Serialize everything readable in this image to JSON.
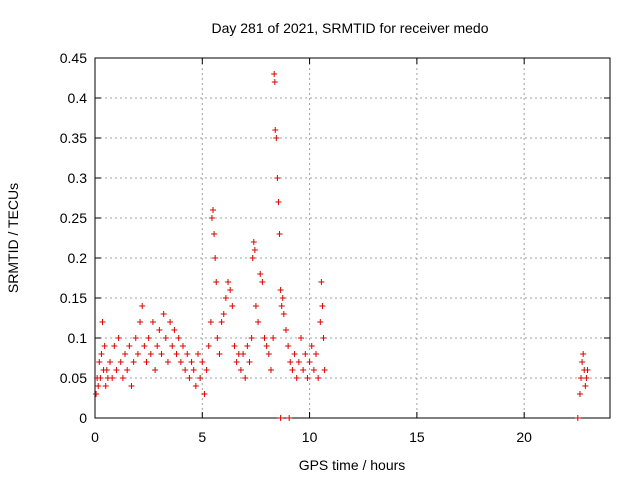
{
  "chart_data": {
    "type": "scatter",
    "title": "Day 281 of 2021, SRMTID for receiver medo",
    "xlabel": "GPS time / hours",
    "ylabel": "SRMTID / TECUs",
    "xlim": [
      0,
      24
    ],
    "ylim": [
      0,
      0.45
    ],
    "xticks": [
      0,
      5,
      10,
      15,
      20
    ],
    "xtick_labels": [
      "0",
      "5",
      "10",
      "15",
      "20"
    ],
    "yticks": [
      0,
      0.05,
      0.1,
      0.15,
      0.2,
      0.25,
      0.3,
      0.35,
      0.4,
      0.45
    ],
    "ytick_labels": [
      "0",
      "0.05",
      "0.1",
      "0.15",
      "0.2",
      "0.25",
      "0.3",
      "0.35",
      "0.4",
      "0.45"
    ],
    "grid": true,
    "marker": "+",
    "color": "#dd0000",
    "series": [
      {
        "name": "SRMTID",
        "points": [
          [
            0.05,
            0.03
          ],
          [
            0.1,
            0.05
          ],
          [
            0.15,
            0.04
          ],
          [
            0.2,
            0.07
          ],
          [
            0.25,
            0.05
          ],
          [
            0.3,
            0.08
          ],
          [
            0.35,
            0.12
          ],
          [
            0.4,
            0.06
          ],
          [
            0.45,
            0.09
          ],
          [
            0.5,
            0.04
          ],
          [
            0.55,
            0.06
          ],
          [
            0.6,
            0.05
          ],
          [
            0.7,
            0.07
          ],
          [
            0.8,
            0.05
          ],
          [
            0.9,
            0.09
          ],
          [
            1.0,
            0.06
          ],
          [
            1.1,
            0.1
          ],
          [
            1.2,
            0.07
          ],
          [
            1.3,
            0.05
          ],
          [
            1.4,
            0.08
          ],
          [
            1.5,
            0.06
          ],
          [
            1.6,
            0.09
          ],
          [
            1.7,
            0.04
          ],
          [
            1.8,
            0.07
          ],
          [
            1.9,
            0.1
          ],
          [
            2.0,
            0.08
          ],
          [
            2.1,
            0.12
          ],
          [
            2.2,
            0.14
          ],
          [
            2.3,
            0.09
          ],
          [
            2.4,
            0.07
          ],
          [
            2.5,
            0.1
          ],
          [
            2.6,
            0.08
          ],
          [
            2.7,
            0.12
          ],
          [
            2.8,
            0.06
          ],
          [
            2.9,
            0.09
          ],
          [
            3.0,
            0.11
          ],
          [
            3.1,
            0.08
          ],
          [
            3.2,
            0.13
          ],
          [
            3.3,
            0.1
          ],
          [
            3.4,
            0.07
          ],
          [
            3.5,
            0.12
          ],
          [
            3.6,
            0.09
          ],
          [
            3.7,
            0.11
          ],
          [
            3.8,
            0.08
          ],
          [
            3.9,
            0.1
          ],
          [
            4.0,
            0.07
          ],
          [
            4.1,
            0.09
          ],
          [
            4.2,
            0.06
          ],
          [
            4.3,
            0.08
          ],
          [
            4.4,
            0.05
          ],
          [
            4.5,
            0.07
          ],
          [
            4.6,
            0.06
          ],
          [
            4.7,
            0.04
          ],
          [
            4.8,
            0.08
          ],
          [
            4.9,
            0.05
          ],
          [
            5.0,
            0.07
          ],
          [
            5.1,
            0.03
          ],
          [
            5.2,
            0.06
          ],
          [
            5.3,
            0.09
          ],
          [
            5.4,
            0.12
          ],
          [
            5.45,
            0.25
          ],
          [
            5.5,
            0.26
          ],
          [
            5.55,
            0.23
          ],
          [
            5.6,
            0.2
          ],
          [
            5.65,
            0.17
          ],
          [
            5.7,
            0.1
          ],
          [
            5.8,
            0.08
          ],
          [
            5.9,
            0.12
          ],
          [
            6.0,
            0.13
          ],
          [
            6.1,
            0.15
          ],
          [
            6.2,
            0.17
          ],
          [
            6.3,
            0.16
          ],
          [
            6.4,
            0.14
          ],
          [
            6.5,
            0.09
          ],
          [
            6.6,
            0.07
          ],
          [
            6.7,
            0.08
          ],
          [
            6.8,
            0.06
          ],
          [
            6.9,
            0.08
          ],
          [
            7.0,
            0.05
          ],
          [
            7.1,
            0.09
          ],
          [
            7.2,
            0.07
          ],
          [
            7.3,
            0.1
          ],
          [
            7.35,
            0.2
          ],
          [
            7.4,
            0.22
          ],
          [
            7.45,
            0.21
          ],
          [
            7.5,
            0.14
          ],
          [
            7.6,
            0.12
          ],
          [
            7.7,
            0.18
          ],
          [
            7.8,
            0.17
          ],
          [
            7.9,
            0.1
          ],
          [
            8.0,
            0.09
          ],
          [
            8.1,
            0.08
          ],
          [
            8.2,
            0.06
          ],
          [
            8.3,
            0.1
          ],
          [
            8.35,
            0.43
          ],
          [
            8.38,
            0.42
          ],
          [
            8.4,
            0.36
          ],
          [
            8.45,
            0.35
          ],
          [
            8.5,
            0.3
          ],
          [
            8.55,
            0.27
          ],
          [
            8.6,
            0.23
          ],
          [
            8.65,
            0.16
          ],
          [
            8.7,
            0.14
          ],
          [
            8.75,
            0.15
          ],
          [
            8.8,
            0.13
          ],
          [
            8.9,
            0.11
          ],
          [
            9.0,
            0.09
          ],
          [
            9.1,
            0.07
          ],
          [
            9.2,
            0.06
          ],
          [
            9.3,
            0.08
          ],
          [
            9.4,
            0.05
          ],
          [
            9.5,
            0.07
          ],
          [
            9.6,
            0.1
          ],
          [
            9.7,
            0.06
          ],
          [
            9.8,
            0.08
          ],
          [
            9.9,
            0.05
          ],
          [
            10.0,
            0.07
          ],
          [
            10.1,
            0.09
          ],
          [
            10.2,
            0.06
          ],
          [
            10.3,
            0.08
          ],
          [
            10.4,
            0.05
          ],
          [
            10.5,
            0.12
          ],
          [
            10.55,
            0.17
          ],
          [
            10.6,
            0.14
          ],
          [
            10.65,
            0.1
          ],
          [
            10.7,
            0.06
          ],
          [
            8.65,
            0.0
          ],
          [
            9.05,
            0.0
          ],
          [
            22.5,
            0.0
          ],
          [
            22.6,
            0.03
          ],
          [
            22.65,
            0.05
          ],
          [
            22.7,
            0.07
          ],
          [
            22.75,
            0.08
          ],
          [
            22.8,
            0.06
          ],
          [
            22.85,
            0.04
          ],
          [
            22.9,
            0.05
          ],
          [
            22.95,
            0.06
          ]
        ]
      }
    ]
  }
}
